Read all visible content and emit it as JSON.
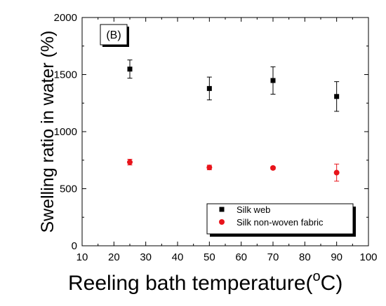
{
  "chart_data": {
    "type": "scatter",
    "panel_label": "(B)",
    "xlabel_main": "Reeling bath temperature(",
    "xlabel_sup": "o",
    "xlabel_end": "C)",
    "ylabel": "Swelling ratio in water (%)",
    "xlim": [
      10,
      100
    ],
    "ylim": [
      0,
      2000
    ],
    "x_ticks": [
      10,
      20,
      30,
      40,
      50,
      60,
      70,
      80,
      90,
      100
    ],
    "y_ticks": [
      0,
      500,
      1000,
      1500,
      2000
    ],
    "legend_position": "bottom-right",
    "grid": false,
    "series": [
      {
        "name": "Silk web",
        "marker": "square",
        "color": "#000000",
        "points": [
          {
            "x": 25,
            "y": 1548,
            "err": 80
          },
          {
            "x": 50,
            "y": 1378,
            "err": 100
          },
          {
            "x": 70,
            "y": 1448,
            "err": 120
          },
          {
            "x": 90,
            "y": 1308,
            "err": 130
          }
        ]
      },
      {
        "name": "Silk non-woven fabric",
        "marker": "circle",
        "color": "#e8141b",
        "points": [
          {
            "x": 25,
            "y": 733,
            "err": 25
          },
          {
            "x": 50,
            "y": 686,
            "err": 20
          },
          {
            "x": 70,
            "y": 682,
            "err": 12
          },
          {
            "x": 90,
            "y": 641,
            "err": 75
          }
        ]
      }
    ]
  }
}
